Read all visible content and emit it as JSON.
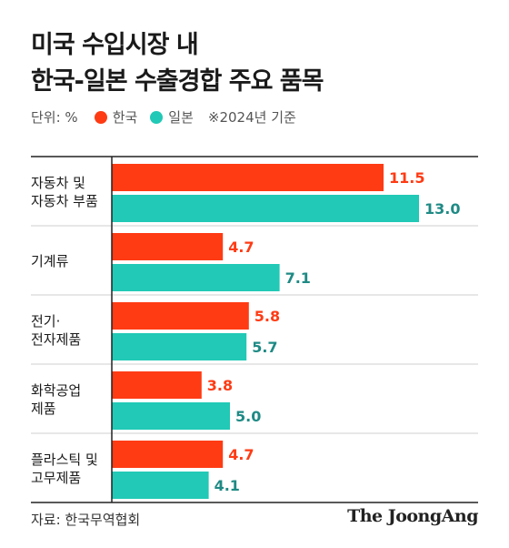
{
  "title_line1": "미국 수입시장 내",
  "title_line2": "한국-일본 수출경합 주요 품목",
  "legend": {
    "unit": "단위: %",
    "korea": "한국",
    "japan": "일본",
    "base_year": "※2024년 기준"
  },
  "colors": {
    "korea": "#ff3b14",
    "japan": "#21c9b6",
    "korea_label": "#ff3b14",
    "japan_label": "#1f8a85",
    "divider": "#222222",
    "axis": "#222222"
  },
  "chart_data": {
    "type": "bar",
    "orientation": "horizontal",
    "categories": [
      [
        "자동차 및",
        "자동차 부품"
      ],
      [
        "기계류"
      ],
      [
        "전기·",
        "전자제품"
      ],
      [
        "화학공업",
        "제품"
      ],
      [
        "플라스틱 및",
        "고무제품"
      ]
    ],
    "series": [
      {
        "name": "한국",
        "values": [
          11.5,
          4.7,
          5.8,
          3.8,
          4.7
        ]
      },
      {
        "name": "일본",
        "values": [
          13.0,
          7.1,
          5.7,
          5.0,
          4.1
        ]
      }
    ],
    "xlim": [
      0,
      15
    ],
    "grid": false
  },
  "footer": {
    "source": "자료: 한국무역협회",
    "brand": "The JoongAng"
  }
}
